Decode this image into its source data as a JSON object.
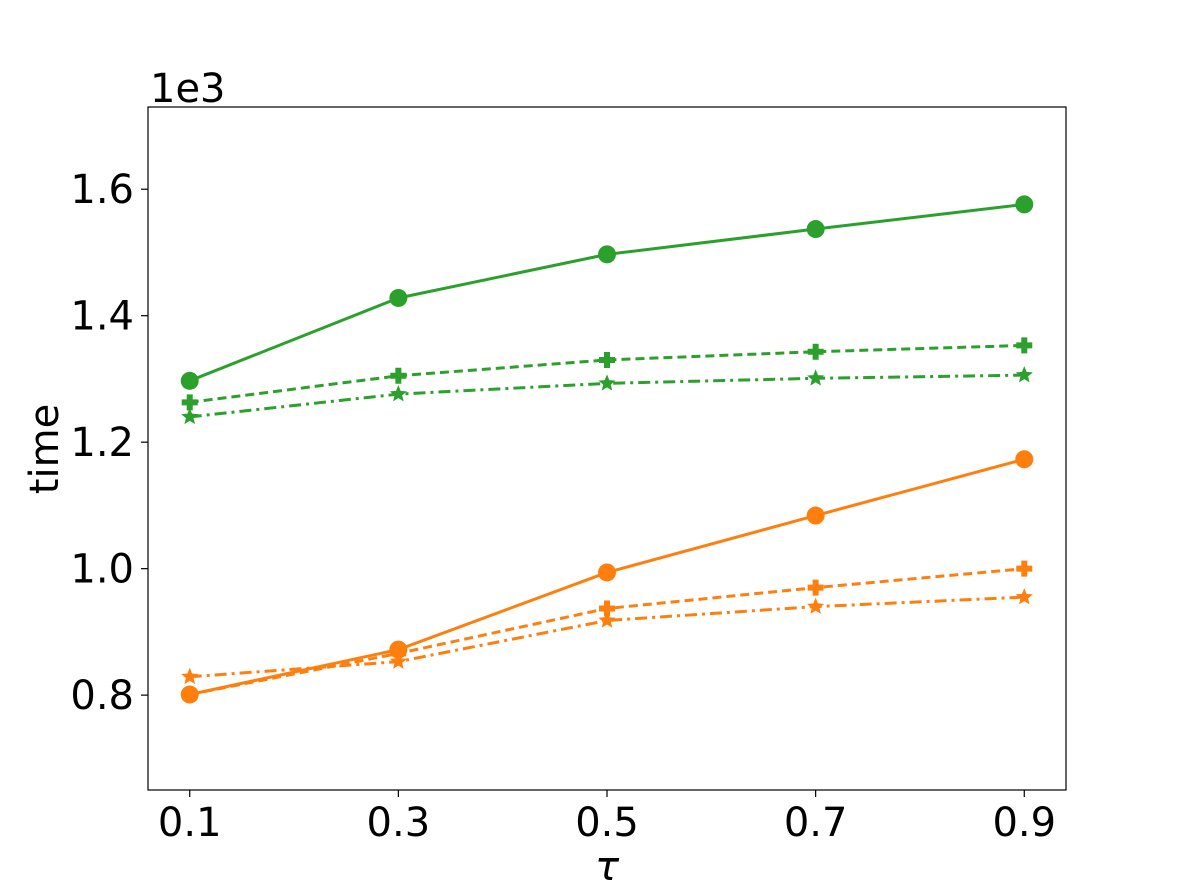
{
  "chart_data": {
    "type": "line",
    "xlabel": "τ",
    "ylabel": "time",
    "y_offset_label": "1e3",
    "x": [
      0.1,
      0.3,
      0.5,
      0.7,
      0.9
    ],
    "x_tick_labels": [
      "0.1",
      "0.3",
      "0.5",
      "0.7",
      "0.9"
    ],
    "y_ticks": [
      0.8,
      1.0,
      1.2,
      1.4,
      1.6
    ],
    "y_tick_labels": [
      "0.8",
      "1.0",
      "1.2",
      "1.4",
      "1.6"
    ],
    "xlim": [
      0.06,
      0.94
    ],
    "ylim": [
      0.65,
      1.73
    ],
    "grid": false,
    "series": [
      {
        "color": "#2ca02c",
        "linestyle": "solid",
        "marker": "circle",
        "values": [
          1.297,
          1.428,
          1.497,
          1.537,
          1.576
        ]
      },
      {
        "color": "#2ca02c",
        "linestyle": "dashed",
        "marker": "plus",
        "values": [
          1.263,
          1.305,
          1.33,
          1.343,
          1.353
        ]
      },
      {
        "color": "#2ca02c",
        "linestyle": "dashdot",
        "marker": "star",
        "values": [
          1.24,
          1.276,
          1.293,
          1.301,
          1.306
        ]
      },
      {
        "color": "#ff7f0e",
        "linestyle": "solid",
        "marker": "circle",
        "values": [
          0.801,
          0.872,
          0.994,
          1.084,
          1.173
        ]
      },
      {
        "color": "#ff7f0e",
        "linestyle": "dashed",
        "marker": "plus",
        "values": [
          0.801,
          0.866,
          0.937,
          0.97,
          1.0
        ]
      },
      {
        "color": "#ff7f0e",
        "linestyle": "dashdot",
        "marker": "star",
        "values": [
          0.829,
          0.853,
          0.918,
          0.94,
          0.955
        ]
      }
    ]
  }
}
